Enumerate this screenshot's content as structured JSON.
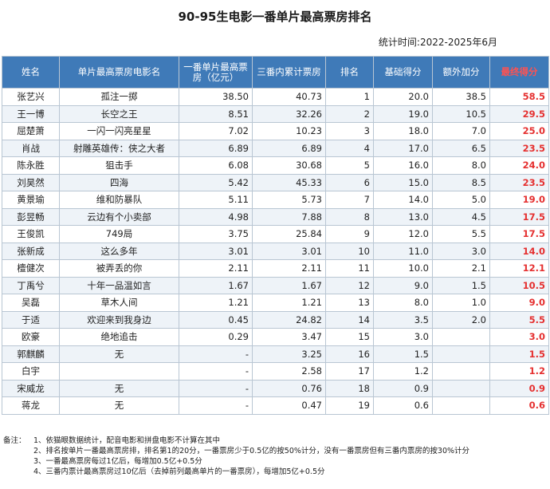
{
  "title": "90-95生电影一番单片最高票房排名",
  "stat_time": "统计时间:2022-2025年6月",
  "table": {
    "headers": [
      "姓名",
      "单片最高票房电影名",
      "一番单片最高票房（亿元）",
      "三番内累计票房",
      "排名",
      "基础得分",
      "额外加分",
      "最终得分"
    ],
    "rows": [
      {
        "name": "张艺兴",
        "film": "孤注一掷",
        "top": "38.50",
        "cum": "40.73",
        "rank": "1",
        "base": "20.0",
        "extra": "38.5",
        "final": "58.5"
      },
      {
        "name": "王一博",
        "film": "长空之王",
        "top": "8.51",
        "cum": "32.26",
        "rank": "2",
        "base": "19.0",
        "extra": "10.5",
        "final": "29.5"
      },
      {
        "name": "屈楚萧",
        "film": "一闪一闪亮星星",
        "top": "7.02",
        "cum": "10.23",
        "rank": "3",
        "base": "18.0",
        "extra": "7.0",
        "final": "25.0"
      },
      {
        "name": "肖战",
        "film": "射雕英雄传：侠之大者",
        "top": "6.89",
        "cum": "6.89",
        "rank": "4",
        "base": "17.0",
        "extra": "6.5",
        "final": "23.5"
      },
      {
        "name": "陈永胜",
        "film": "狙击手",
        "top": "6.08",
        "cum": "30.68",
        "rank": "5",
        "base": "16.0",
        "extra": "8.0",
        "final": "24.0"
      },
      {
        "name": "刘昊然",
        "film": "四海",
        "top": "5.42",
        "cum": "45.33",
        "rank": "6",
        "base": "15.0",
        "extra": "8.5",
        "final": "23.5"
      },
      {
        "name": "黄景瑜",
        "film": "维和防暴队",
        "top": "5.11",
        "cum": "5.73",
        "rank": "7",
        "base": "14.0",
        "extra": "5.0",
        "final": "19.0"
      },
      {
        "name": "彭昱畅",
        "film": "云边有个小卖部",
        "top": "4.98",
        "cum": "7.88",
        "rank": "8",
        "base": "13.0",
        "extra": "4.5",
        "final": "17.5"
      },
      {
        "name": "王俊凯",
        "film": "749局",
        "top": "3.75",
        "cum": "25.84",
        "rank": "9",
        "base": "12.0",
        "extra": "5.5",
        "final": "17.5"
      },
      {
        "name": "张新成",
        "film": "这么多年",
        "top": "3.01",
        "cum": "3.01",
        "rank": "10",
        "base": "11.0",
        "extra": "3.0",
        "final": "14.0"
      },
      {
        "name": "檀健次",
        "film": "被弄丢的你",
        "top": "2.11",
        "cum": "2.11",
        "rank": "11",
        "base": "10.0",
        "extra": "2.1",
        "final": "12.1"
      },
      {
        "name": "丁禹兮",
        "film": "十年一品温如言",
        "top": "1.67",
        "cum": "1.67",
        "rank": "12",
        "base": "9.0",
        "extra": "1.5",
        "final": "10.5"
      },
      {
        "name": "吴磊",
        "film": "草木人间",
        "top": "1.21",
        "cum": "1.21",
        "rank": "13",
        "base": "8.0",
        "extra": "1.0",
        "final": "9.0"
      },
      {
        "name": "于适",
        "film": "欢迎来到我身边",
        "top": "0.45",
        "cum": "24.82",
        "rank": "14",
        "base": "3.5",
        "extra": "2.0",
        "final": "5.5"
      },
      {
        "name": "欧豪",
        "film": "绝地追击",
        "top": "0.29",
        "cum": "3.47",
        "rank": "15",
        "base": "3.0",
        "extra": "",
        "final": "3.0"
      },
      {
        "name": "郭麒麟",
        "film": "无",
        "top": "-",
        "cum": "3.25",
        "rank": "16",
        "base": "1.5",
        "extra": "",
        "final": "1.5"
      },
      {
        "name": "白宇",
        "film": "",
        "top": "-",
        "cum": "2.58",
        "rank": "17",
        "base": "1.2",
        "extra": "",
        "final": "1.2"
      },
      {
        "name": "宋威龙",
        "film": "无",
        "top": "-",
        "cum": "0.76",
        "rank": "18",
        "base": "0.9",
        "extra": "",
        "final": "0.9"
      },
      {
        "name": "蒋龙",
        "film": "无",
        "top": "-",
        "cum": "0.47",
        "rank": "19",
        "base": "0.6",
        "extra": "",
        "final": "0.6"
      }
    ]
  },
  "notes": {
    "label": "备注：",
    "items": [
      "1、依猫眼数据统计，配音电影和拼盘电影不计算在其中",
      "2、排名按单片一番最高票房排，排名第1的20分，一番票房少于0.5亿的按50%计分，没有一番票房但有三番内票房的按30%计分",
      "3、一番最高票房每过1亿后，每增加0.5亿+0.5分",
      "4、三番内票计最高票房过10亿后（去掉前列最高单片的一番票房），每增加5亿+0.5分"
    ]
  }
}
